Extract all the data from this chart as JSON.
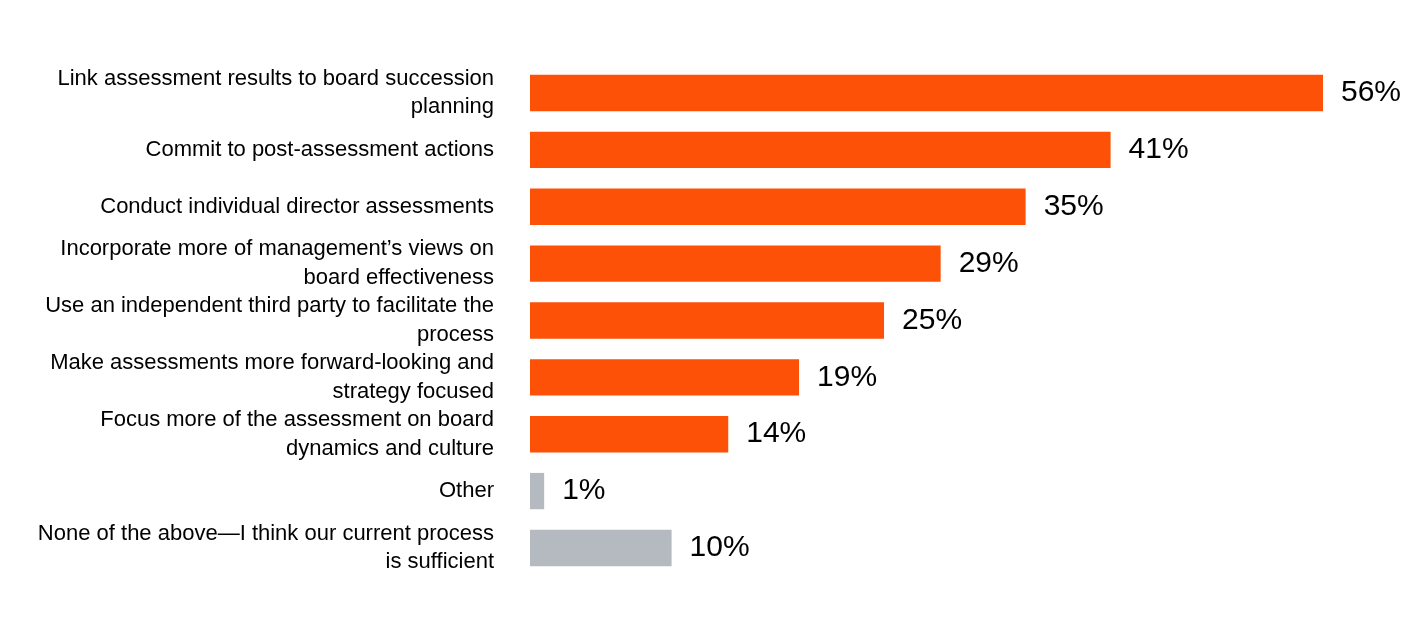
{
  "chart_data": {
    "type": "bar",
    "orientation": "horizontal",
    "categories": [
      "Link assessment results to board succession planning",
      "Commit to post-assessment actions",
      "Conduct individual director assessments",
      "Incorporate more of management’s views on board effectiveness",
      "Use an independent third party to facilitate the process",
      "Make assessments more forward-looking and strategy focused",
      "Focus more of the assessment on board dynamics and culture",
      "Other",
      "None of the above—I think our current process is sufficient"
    ],
    "values": [
      56,
      41,
      35,
      29,
      25,
      19,
      14,
      1,
      10
    ],
    "colors": [
      "#fd5108",
      "#fd5108",
      "#fd5108",
      "#fd5108",
      "#fd5108",
      "#fd5108",
      "#fd5108",
      "#b5bac1",
      "#b5bac1"
    ],
    "value_labels": [
      "56%",
      "41%",
      "35%",
      "29%",
      "25%",
      "19%",
      "14%",
      "1%",
      "10%"
    ],
    "tick_labels": "y",
    "legend": false
  }
}
